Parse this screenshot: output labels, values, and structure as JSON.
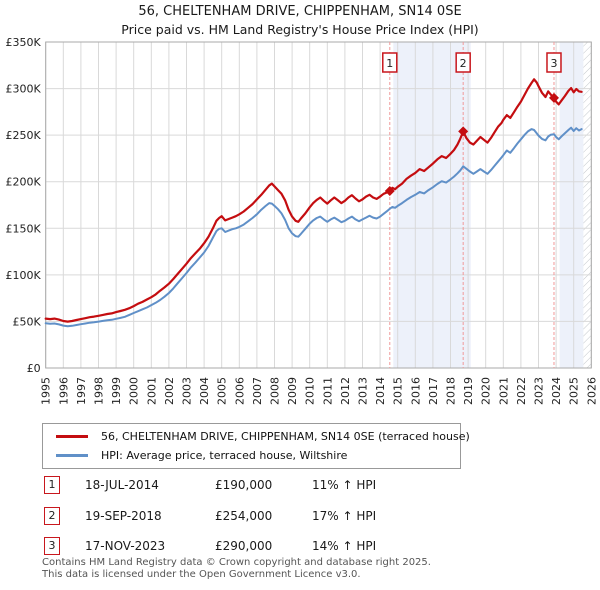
{
  "chart_data": {
    "type": "line",
    "title": "56, CHELTENHAM DRIVE, CHIPPENHAM, SN14 0SE",
    "subtitle": "Price paid vs. HM Land Registry's House Price Index (HPI)",
    "xlim": [
      1995,
      2026
    ],
    "ylim": [
      0,
      350
    ],
    "x_ticks": [
      "1995",
      "1996",
      "1997",
      "1998",
      "1999",
      "2000",
      "2001",
      "2002",
      "2003",
      "2004",
      "2005",
      "2006",
      "2007",
      "2008",
      "2009",
      "2010",
      "2011",
      "2012",
      "2013",
      "2014",
      "2015",
      "2016",
      "2017",
      "2018",
      "2019",
      "2020",
      "2021",
      "2022",
      "2023",
      "2024",
      "2025",
      "2026"
    ],
    "y_ticks": [
      "£350K",
      "£300K",
      "£250K",
      "£200K",
      "£150K",
      "£100K",
      "£50K",
      "£0"
    ],
    "y_values": [
      350,
      300,
      250,
      200,
      150,
      100,
      50,
      0
    ],
    "grid": true,
    "legend_position": "below",
    "colors": {
      "band": "#edf1fa",
      "grid": "#d9d9d9",
      "spine": "#aaaaaa",
      "dashed": "#f09999",
      "marker_box_border": "#c8171d",
      "hatch": "#c4c8cc"
    },
    "x": [
      1995,
      1995.25,
      1995.5,
      1995.75,
      1996,
      1996.25,
      1996.5,
      1996.75,
      1997,
      1997.25,
      1997.5,
      1997.75,
      1998,
      1998.25,
      1998.5,
      1998.75,
      1999,
      1999.25,
      1999.5,
      1999.75,
      2000,
      2000.25,
      2000.5,
      2000.75,
      2001,
      2001.25,
      2001.5,
      2001.75,
      2002,
      2002.25,
      2002.5,
      2002.75,
      2003,
      2003.25,
      2003.5,
      2003.75,
      2004,
      2004.25,
      2004.5,
      2004.7,
      2004.85,
      2005,
      2005.2,
      2005.4,
      2005.6,
      2005.8,
      2006,
      2006.25,
      2006.5,
      2006.75,
      2007,
      2007.25,
      2007.5,
      2007.7,
      2007.85,
      2008,
      2008.2,
      2008.4,
      2008.6,
      2008.8,
      2009,
      2009.2,
      2009.35,
      2009.5,
      2009.75,
      2010,
      2010.2,
      2010.4,
      2010.6,
      2010.8,
      2011,
      2011.2,
      2011.4,
      2011.6,
      2011.8,
      2012,
      2012.2,
      2012.4,
      2012.6,
      2012.8,
      2013,
      2013.2,
      2013.4,
      2013.6,
      2013.8,
      2014,
      2014.2,
      2014.4,
      2014.55,
      2014.7,
      2014.85,
      2015,
      2015.25,
      2015.5,
      2015.75,
      2016,
      2016.25,
      2016.5,
      2016.75,
      2017,
      2017.25,
      2017.5,
      2017.75,
      2018,
      2018.2,
      2018.4,
      2018.55,
      2018.72,
      2018.9,
      2019.1,
      2019.3,
      2019.5,
      2019.7,
      2019.9,
      2020.1,
      2020.3,
      2020.5,
      2020.7,
      2020.9,
      2021,
      2021.2,
      2021.4,
      2021.6,
      2021.8,
      2022,
      2022.2,
      2022.4,
      2022.6,
      2022.75,
      2022.9,
      2023,
      2023.2,
      2023.4,
      2023.55,
      2023.7,
      2023.88,
      2024,
      2024.15,
      2024.3,
      2024.5,
      2024.7,
      2024.85,
      2025,
      2025.15,
      2025.3,
      2025.45
    ],
    "series": [
      {
        "name": "56, CHELTENHAM DRIVE, CHIPPENHAM, SN14 0SE (terraced house)",
        "color": "#c40d10",
        "values": [
          53,
          52.5,
          53,
          52,
          50.5,
          49.8,
          50.5,
          51.5,
          52.5,
          53.5,
          54.5,
          55.2,
          56,
          57,
          58,
          58.6,
          60,
          61.2,
          62.5,
          64.2,
          66.5,
          69,
          71,
          73.5,
          76,
          79,
          83,
          86.5,
          90.5,
          95.5,
          101,
          106.5,
          112,
          118,
          123,
          128,
          134,
          141,
          150,
          158,
          161,
          163,
          158.5,
          160,
          161.5,
          163,
          165,
          168,
          172,
          176,
          181,
          186,
          191.5,
          196,
          198,
          195,
          191,
          187,
          180,
          170,
          162.5,
          158,
          157,
          160.5,
          166,
          172.5,
          177,
          180.5,
          183,
          179.5,
          176.5,
          180,
          183,
          180,
          177,
          179.5,
          183,
          185.5,
          182,
          179,
          181,
          184,
          186,
          183,
          181.5,
          184,
          187,
          188.5,
          190,
          193.5,
          192,
          194.5,
          198,
          203,
          206.5,
          209.5,
          213.5,
          211.5,
          215.5,
          219.5,
          224,
          227.5,
          225.5,
          230,
          234,
          240,
          246,
          254,
          247,
          242,
          240,
          244,
          248,
          245,
          242,
          247,
          253,
          259,
          263,
          266.5,
          271.5,
          268.5,
          274.5,
          280.5,
          286,
          293,
          300,
          306,
          310,
          306.5,
          302.5,
          295.5,
          291,
          297,
          293.5,
          290,
          286,
          283,
          287,
          292,
          297.5,
          300.5,
          296,
          299.5,
          297,
          296.5
        ]
      },
      {
        "name": "HPI: Average price, terraced house, Wiltshire",
        "color": "#6090c8",
        "values": [
          48,
          47.5,
          47.8,
          46.8,
          45.5,
          44.8,
          45.3,
          46.2,
          47,
          47.8,
          48.6,
          49.2,
          49.8,
          50.6,
          51.2,
          51.8,
          52.8,
          53.8,
          55,
          57,
          59,
          61,
          63,
          65,
          67.5,
          70,
          73,
          76.5,
          80.5,
          85.5,
          91,
          96.5,
          102,
          108,
          113,
          118.5,
          124,
          131,
          140,
          147,
          149.5,
          150,
          146,
          147.5,
          149,
          150,
          151.5,
          154,
          157.5,
          161,
          165,
          170,
          174,
          177,
          176.5,
          174,
          170.5,
          166,
          159,
          150,
          144.5,
          141.5,
          141,
          144,
          149.5,
          155,
          158.5,
          161,
          162.5,
          159.5,
          157,
          159.5,
          161.5,
          159,
          156.5,
          158,
          160.5,
          162.5,
          159.5,
          157.5,
          159.5,
          161.5,
          163.5,
          161.5,
          160.5,
          162.5,
          165.5,
          168.5,
          171,
          173,
          172,
          174,
          177,
          180.5,
          183.5,
          186,
          189,
          187.5,
          191,
          194,
          197.5,
          200.5,
          199,
          202.5,
          205.5,
          209,
          212,
          216.5,
          214,
          211,
          208.5,
          211,
          213.5,
          211,
          208.5,
          212.5,
          217,
          221.5,
          226,
          228.5,
          233.5,
          231,
          236,
          241,
          245.5,
          250,
          254,
          256.5,
          255.5,
          252,
          249.5,
          246,
          244.5,
          248.5,
          250.5,
          251,
          248,
          245.5,
          248.5,
          252,
          255.5,
          258,
          254.5,
          257.5,
          255,
          256.5
        ]
      }
    ],
    "bands": [
      {
        "from": 2014.75,
        "to": 2019.15
      },
      {
        "from": 2024.2,
        "to": 2025.55
      }
    ],
    "future_hatch": {
      "from": 2025.55,
      "to": 2026
    },
    "transactions": [
      {
        "n": "1",
        "year": 2014.55,
        "price": 190,
        "date": "18-JUL-2014",
        "price_label": "£190,000",
        "hpi": "11% ↑ HPI"
      },
      {
        "n": "2",
        "year": 2018.72,
        "price": 254,
        "date": "19-SEP-2018",
        "price_label": "£254,000",
        "hpi": "17% ↑ HPI"
      },
      {
        "n": "3",
        "year": 2023.88,
        "price": 290,
        "date": "17-NOV-2023",
        "price_label": "£290,000",
        "hpi": "14% ↑ HPI"
      }
    ]
  },
  "footer": {
    "line1": "Contains HM Land Registry data © Crown copyright and database right 2025.",
    "line2": "This data is licensed under the Open Government Licence v3.0."
  }
}
